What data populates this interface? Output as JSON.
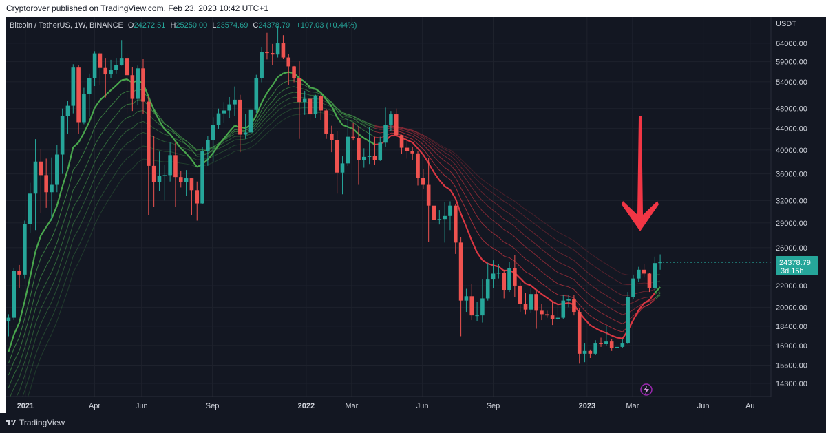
{
  "publisher_line": "Cryptorover published on TradingView.com, Feb 23, 2023 10:42 UTC+1",
  "legend": {
    "symbol": "Bitcoin / TetherUS, 1W, BINANCE",
    "open_label": "O",
    "open": "24272.51",
    "high_label": "H",
    "high": "25250.00",
    "low_label": "L",
    "low": "23574.69",
    "close_label": "C",
    "close": "24378.79",
    "change": "+107.03 (+0.44%)"
  },
  "price_axis": {
    "currency": "USDT",
    "ticks": [
      "64000.00",
      "59000.00",
      "54000.00",
      "48000.00",
      "44000.00",
      "40000.00",
      "36000.00",
      "32000.00",
      "29000.00",
      "26000.00",
      "22000.00",
      "20000.00",
      "18400.00",
      "16900.00",
      "15500.00",
      "14300.00"
    ],
    "last_price": "24378.79",
    "countdown": "3d 15h"
  },
  "time_axis": {
    "labels": [
      "2021",
      "Apr",
      "Jun",
      "Sep",
      "2022",
      "Mar",
      "Jun",
      "Sep",
      "2023",
      "Mar",
      "Jun",
      "Au"
    ]
  },
  "branding": "TradingView",
  "colors": {
    "up": "#26a69a",
    "down": "#ef5350",
    "ribbon_green": "#4caf50",
    "ribbon_red": "#e53945",
    "arrow": "#f23645",
    "background": "#131722"
  },
  "chart_data": {
    "type": "candlestick",
    "title": "Bitcoin / TetherUS, 1W, BINANCE",
    "scale": "log",
    "ylim": [
      13500,
      72000
    ],
    "x_range": [
      "2020-12-07",
      "2023-08-28"
    ],
    "candles": [
      [
        18800,
        19400,
        17600,
        19100
      ],
      [
        19100,
        23800,
        18900,
        23500
      ],
      [
        23500,
        24100,
        21800,
        23100
      ],
      [
        23100,
        29300,
        22700,
        28900
      ],
      [
        28900,
        34600,
        27700,
        33000
      ],
      [
        33000,
        41950,
        28100,
        38000
      ],
      [
        38000,
        40100,
        30300,
        35800
      ],
      [
        35800,
        38500,
        31000,
        33200
      ],
      [
        33200,
        38700,
        29300,
        34300
      ],
      [
        34300,
        40900,
        33200,
        39200
      ],
      [
        39200,
        48000,
        36000,
        46400
      ],
      [
        46400,
        49700,
        43000,
        48600
      ],
      [
        48600,
        58350,
        47000,
        57500
      ],
      [
        57500,
        58200,
        43000,
        45200
      ],
      [
        45200,
        52600,
        44800,
        51200
      ],
      [
        51200,
        56000,
        46300,
        54900
      ],
      [
        54900,
        61800,
        53000,
        61200
      ],
      [
        61200,
        61700,
        53300,
        57400
      ],
      [
        57400,
        60000,
        50400,
        55800
      ],
      [
        55800,
        59500,
        54800,
        57000
      ],
      [
        57000,
        60000,
        56000,
        58200
      ],
      [
        58200,
        64900,
        58000,
        60000
      ],
      [
        60000,
        61200,
        47000,
        55600
      ],
      [
        55600,
        57600,
        47500,
        50100
      ],
      [
        50100,
        58000,
        48800,
        57300
      ],
      [
        57300,
        59700,
        46900,
        49500
      ],
      [
        49500,
        50600,
        30000,
        37300
      ],
      [
        37300,
        42500,
        31100,
        34700
      ],
      [
        34700,
        39700,
        33400,
        35700
      ],
      [
        35700,
        37400,
        32000,
        35800
      ],
      [
        35800,
        41300,
        34800,
        39100
      ],
      [
        39100,
        41300,
        31100,
        35500
      ],
      [
        35500,
        36400,
        33900,
        34700
      ],
      [
        34700,
        36600,
        32700,
        35300
      ],
      [
        35300,
        35400,
        30000,
        33500
      ],
      [
        33500,
        34800,
        29300,
        31600
      ],
      [
        31600,
        40500,
        31500,
        39800
      ],
      [
        39800,
        42600,
        37300,
        41800
      ],
      [
        41800,
        46200,
        38000,
        44600
      ],
      [
        44600,
        48000,
        43800,
        47000
      ],
      [
        47000,
        49400,
        45100,
        47600
      ],
      [
        47600,
        50500,
        46000,
        48900
      ],
      [
        48900,
        52900,
        46500,
        49900
      ],
      [
        49900,
        51000,
        39600,
        42800
      ],
      [
        42800,
        46900,
        42000,
        43200
      ],
      [
        43200,
        48800,
        40700,
        47700
      ],
      [
        47700,
        55700,
        47100,
        54900
      ],
      [
        54900,
        62900,
        53900,
        61500
      ],
      [
        61500,
        67000,
        59600,
        61300
      ],
      [
        61300,
        63800,
        58100,
        60900
      ],
      [
        60900,
        69000,
        60100,
        64100
      ],
      [
        64100,
        66300,
        59800,
        60100
      ],
      [
        60100,
        61000,
        53300,
        57800
      ],
      [
        57800,
        57900,
        53900,
        54800
      ],
      [
        54800,
        59100,
        42000,
        49400
      ],
      [
        49400,
        51900,
        46700,
        50100
      ],
      [
        50100,
        52000,
        45500,
        46800
      ],
      [
        46800,
        51000,
        46000,
        50800
      ],
      [
        50800,
        51200,
        45600,
        47600
      ],
      [
        47600,
        47800,
        42000,
        43000
      ],
      [
        43000,
        44500,
        39600,
        41800
      ],
      [
        41800,
        43500,
        33000,
        36200
      ],
      [
        36200,
        38900,
        32900,
        37700
      ],
      [
        37700,
        45800,
        37300,
        42400
      ],
      [
        42400,
        45000,
        41700,
        42200
      ],
      [
        42200,
        44400,
        34300,
        38300
      ],
      [
        38300,
        40300,
        37000,
        38800
      ],
      [
        38800,
        44200,
        37600,
        39000
      ],
      [
        39000,
        42400,
        37400,
        38300
      ],
      [
        38300,
        42400,
        38100,
        41300
      ],
      [
        41300,
        48200,
        40600,
        44600
      ],
      [
        44600,
        47500,
        43400,
        46800
      ],
      [
        46800,
        48000,
        42600,
        42700
      ],
      [
        42700,
        42800,
        39300,
        40400
      ],
      [
        40400,
        42000,
        38500,
        39800
      ],
      [
        39800,
        40600,
        38200,
        39400
      ],
      [
        39400,
        39800,
        34200,
        35400
      ],
      [
        35400,
        36800,
        33700,
        34300
      ],
      [
        34300,
        38600,
        26700,
        31300
      ],
      [
        31300,
        31400,
        28700,
        29400
      ],
      [
        29400,
        30700,
        28800,
        29500
      ],
      [
        29500,
        31800,
        26600,
        29900
      ],
      [
        29900,
        31900,
        28100,
        31300
      ],
      [
        31300,
        31500,
        25300,
        26600
      ],
      [
        26600,
        27200,
        17600,
        20600
      ],
      [
        20600,
        21700,
        19600,
        21000
      ],
      [
        21000,
        22200,
        18900,
        19300
      ],
      [
        19300,
        20500,
        18800,
        19300
      ],
      [
        19300,
        22600,
        18700,
        20800
      ],
      [
        20800,
        24300,
        20600,
        22600
      ],
      [
        22600,
        24600,
        21800,
        23200
      ],
      [
        23200,
        24200,
        22700,
        23300
      ],
      [
        23300,
        23600,
        20800,
        21600
      ],
      [
        21600,
        24400,
        21400,
        23800
      ],
      [
        23800,
        25200,
        20900,
        22000
      ],
      [
        22000,
        22300,
        19600,
        20300
      ],
      [
        20300,
        21300,
        19400,
        19800
      ],
      [
        19800,
        21800,
        19500,
        21200
      ],
      [
        21200,
        21500,
        18200,
        19700
      ],
      [
        19700,
        20300,
        18900,
        19400
      ],
      [
        19400,
        19700,
        19100,
        19300
      ],
      [
        19300,
        20500,
        18500,
        19000
      ],
      [
        19000,
        20300,
        18900,
        19100
      ],
      [
        19100,
        21100,
        19000,
        20600
      ],
      [
        20600,
        21100,
        20000,
        20700
      ],
      [
        20700,
        21100,
        19300,
        19600
      ],
      [
        19600,
        19900,
        15600,
        16300
      ],
      [
        16300,
        17100,
        15700,
        16500
      ],
      [
        16500,
        16600,
        16000,
        16300
      ],
      [
        16300,
        17300,
        16200,
        17100
      ],
      [
        17100,
        17500,
        16800,
        17000
      ],
      [
        17000,
        18400,
        16900,
        17200
      ],
      [
        17200,
        17400,
        16500,
        16700
      ],
      [
        16700,
        16900,
        16400,
        16800
      ],
      [
        16800,
        17400,
        16700,
        17100
      ],
      [
        17100,
        21400,
        17000,
        20900
      ],
      [
        20900,
        23100,
        20700,
        22700
      ],
      [
        22700,
        23900,
        22400,
        23600
      ],
      [
        23600,
        24200,
        22800,
        23200
      ],
      [
        23200,
        23300,
        21400,
        21800
      ],
      [
        21800,
        25000,
        21500,
        24300
      ],
      [
        24300,
        25250,
        23600,
        24380
      ]
    ]
  }
}
